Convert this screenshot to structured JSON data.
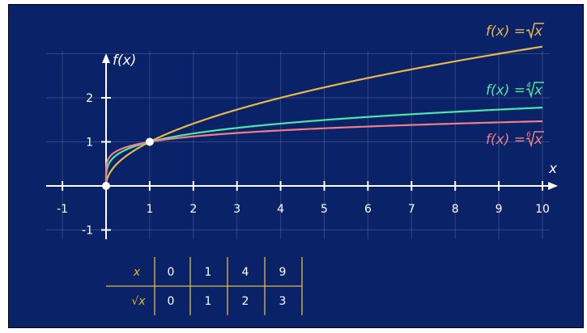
{
  "chart_data": {
    "type": "line",
    "xlabel": "x",
    "ylabel": "f(x)",
    "xlim": [
      0,
      10
    ],
    "ylim": [
      -1,
      3
    ],
    "x_ticks": [
      "-1",
      "1",
      "2",
      "3",
      "4",
      "5",
      "6",
      "7",
      "8",
      "9",
      "10"
    ],
    "y_ticks": [
      "-1",
      "1",
      "2"
    ],
    "grid": true,
    "series": [
      {
        "name": "f(x) = √x",
        "func": "root",
        "n": 2,
        "color": "#e8b84b",
        "label": {
          "pre": "f(x) = ",
          "index": "",
          "arg": "x"
        }
      },
      {
        "name": "f(x) = ∜x",
        "func": "root",
        "n": 4,
        "color": "#4fe6a8",
        "label": {
          "pre": "f(x) = ",
          "index": "4",
          "arg": "x"
        }
      },
      {
        "name": "f(x) = ⁶√x",
        "func": "root",
        "n": 6,
        "color": "#ee7f86",
        "label": {
          "pre": "f(x) = ",
          "index": "6",
          "arg": "x"
        }
      }
    ],
    "highlight_points": [
      [
        0,
        0
      ],
      [
        1,
        1
      ]
    ],
    "table": {
      "row_labels": [
        "x",
        "√x"
      ],
      "rows": [
        [
          "0",
          "1",
          "4",
          "9"
        ],
        [
          "0",
          "1",
          "2",
          "3"
        ]
      ]
    }
  }
}
